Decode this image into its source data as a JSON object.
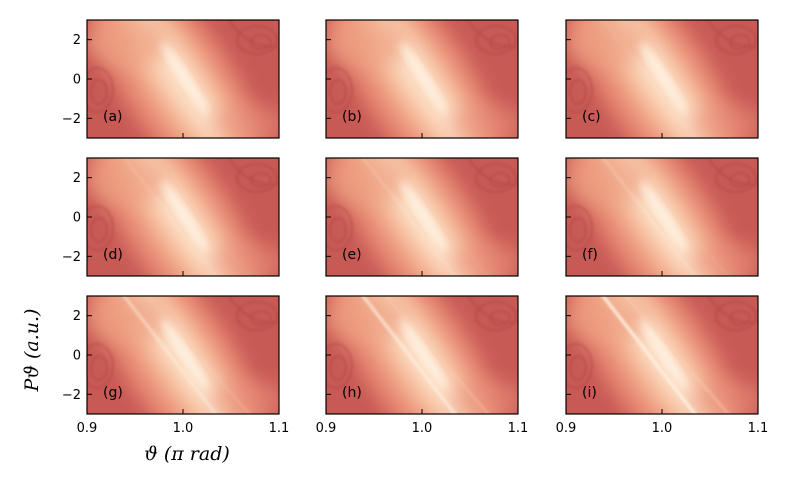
{
  "chart_data": {
    "type": "heatmap",
    "layout": {
      "rows": 3,
      "cols": 3,
      "sharex": true,
      "sharey": true
    },
    "xlabel": "ϑ (π rad)",
    "ylabel": "Pϑ (a.u.)",
    "xlim": [
      0.9,
      1.1
    ],
    "ylim": [
      -3,
      3
    ],
    "x_ticks": [
      "0.9",
      "1.0",
      "1.1"
    ],
    "y_ticks": [
      "2",
      "0",
      "−2"
    ],
    "colormap": {
      "low": "#c85a55",
      "mid": "#e88a74",
      "high": "#fde6cf"
    },
    "panels": [
      {
        "label": "(a)",
        "secondary_ridge": 0.0
      },
      {
        "label": "(b)",
        "secondary_ridge": 0.0
      },
      {
        "label": "(c)",
        "secondary_ridge": 0.05
      },
      {
        "label": "(d)",
        "secondary_ridge": 0.1
      },
      {
        "label": "(e)",
        "secondary_ridge": 0.15
      },
      {
        "label": "(f)",
        "secondary_ridge": 0.2
      },
      {
        "label": "(g)",
        "secondary_ridge": 0.45
      },
      {
        "label": "(h)",
        "secondary_ridge": 0.65
      },
      {
        "label": "(i)",
        "secondary_ridge": 0.85
      }
    ]
  }
}
